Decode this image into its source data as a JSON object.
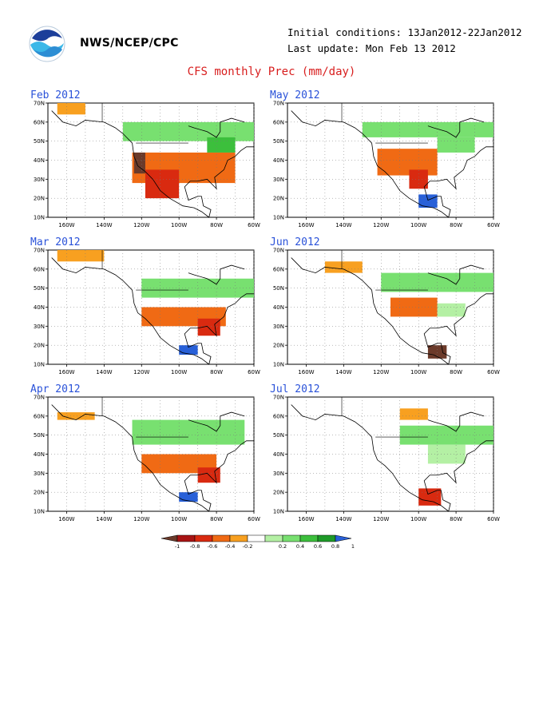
{
  "header": {
    "agency": "NWS/NCEP/CPC",
    "initial_conditions": "Initial conditions: 13Jan2012-22Jan2012",
    "last_update": "Last update: Mon Feb 13 2012",
    "logo_icon": "noaa-logo-icon"
  },
  "title": "CFS monthly Prec (mm/day)",
  "chart_data": [
    {
      "type": "heatmap",
      "panel_title": "Feb 2012",
      "x_ticks": [
        "160W",
        "140W",
        "120W",
        "100W",
        "80W",
        "60W"
      ],
      "y_ticks": [
        "10N",
        "20N",
        "30N",
        "40N",
        "50N",
        "60N",
        "70N"
      ],
      "xlim": [
        -170,
        -60
      ],
      "ylim": [
        10,
        70
      ],
      "grid": true,
      "regions": [
        {
          "lon": [
            -125,
            -70
          ],
          "lat": [
            28,
            44
          ],
          "value": -0.5
        },
        {
          "lon": [
            -124,
            -118
          ],
          "lat": [
            33,
            44
          ],
          "value": -1.0
        },
        {
          "lon": [
            -118,
            -100
          ],
          "lat": [
            20,
            35
          ],
          "value": -0.8
        },
        {
          "lon": [
            -130,
            -60
          ],
          "lat": [
            50,
            60
          ],
          "value": 0.5
        },
        {
          "lon": [
            -165,
            -150
          ],
          "lat": [
            64,
            70
          ],
          "value": -0.3
        },
        {
          "lon": [
            -85,
            -70
          ],
          "lat": [
            44,
            52
          ],
          "value": 0.6
        }
      ]
    },
    {
      "type": "heatmap",
      "panel_title": "May 2012",
      "x_ticks": [
        "160W",
        "140W",
        "120W",
        "100W",
        "80W",
        "60W"
      ],
      "y_ticks": [
        "10N",
        "20N",
        "30N",
        "40N",
        "50N",
        "60N",
        "70N"
      ],
      "xlim": [
        -170,
        -60
      ],
      "ylim": [
        10,
        70
      ],
      "grid": true,
      "regions": [
        {
          "lon": [
            -122,
            -90
          ],
          "lat": [
            32,
            46
          ],
          "value": -0.6
        },
        {
          "lon": [
            -105,
            -95
          ],
          "lat": [
            25,
            35
          ],
          "value": -0.8
        },
        {
          "lon": [
            -100,
            -90
          ],
          "lat": [
            15,
            22
          ],
          "value": 1.0
        },
        {
          "lon": [
            -130,
            -60
          ],
          "lat": [
            52,
            60
          ],
          "value": 0.4
        },
        {
          "lon": [
            -90,
            -70
          ],
          "lat": [
            44,
            52
          ],
          "value": 0.5
        }
      ]
    },
    {
      "type": "heatmap",
      "panel_title": "Mar 2012",
      "x_ticks": [
        "160W",
        "140W",
        "120W",
        "100W",
        "80W",
        "60W"
      ],
      "y_ticks": [
        "10N",
        "20N",
        "30N",
        "40N",
        "50N",
        "60N",
        "70N"
      ],
      "xlim": [
        -170,
        -60
      ],
      "ylim": [
        10,
        70
      ],
      "grid": true,
      "regions": [
        {
          "lon": [
            -120,
            -75
          ],
          "lat": [
            30,
            40
          ],
          "value": -0.6
        },
        {
          "lon": [
            -90,
            -78
          ],
          "lat": [
            25,
            34
          ],
          "value": -0.8
        },
        {
          "lon": [
            -165,
            -140
          ],
          "lat": [
            64,
            70
          ],
          "value": -0.3
        },
        {
          "lon": [
            -120,
            -60
          ],
          "lat": [
            45,
            55
          ],
          "value": 0.4
        },
        {
          "lon": [
            -100,
            -90
          ],
          "lat": [
            15,
            20
          ],
          "value": 1.0
        }
      ]
    },
    {
      "type": "heatmap",
      "panel_title": "Jun 2012",
      "x_ticks": [
        "160W",
        "140W",
        "120W",
        "100W",
        "80W",
        "60W"
      ],
      "y_ticks": [
        "10N",
        "20N",
        "30N",
        "40N",
        "50N",
        "60N",
        "70N"
      ],
      "xlim": [
        -170,
        -60
      ],
      "ylim": [
        10,
        70
      ],
      "grid": true,
      "regions": [
        {
          "lon": [
            -115,
            -90
          ],
          "lat": [
            35,
            45
          ],
          "value": -0.6
        },
        {
          "lon": [
            -150,
            -130
          ],
          "lat": [
            58,
            64
          ],
          "value": -0.3
        },
        {
          "lon": [
            -95,
            -85
          ],
          "lat": [
            13,
            20
          ],
          "value": -1.0
        },
        {
          "lon": [
            -120,
            -60
          ],
          "lat": [
            48,
            58
          ],
          "value": 0.4
        },
        {
          "lon": [
            -90,
            -75
          ],
          "lat": [
            35,
            42
          ],
          "value": 0.3
        }
      ]
    },
    {
      "type": "heatmap",
      "panel_title": "Apr 2012",
      "x_ticks": [
        "160W",
        "140W",
        "120W",
        "100W",
        "80W",
        "60W"
      ],
      "y_ticks": [
        "10N",
        "20N",
        "30N",
        "40N",
        "50N",
        "60N",
        "70N"
      ],
      "xlim": [
        -170,
        -60
      ],
      "ylim": [
        10,
        70
      ],
      "grid": true,
      "regions": [
        {
          "lon": [
            -120,
            -80
          ],
          "lat": [
            30,
            40
          ],
          "value": -0.5
        },
        {
          "lon": [
            -90,
            -78
          ],
          "lat": [
            25,
            33
          ],
          "value": -0.8
        },
        {
          "lon": [
            -125,
            -65
          ],
          "lat": [
            45,
            58
          ],
          "value": 0.4
        },
        {
          "lon": [
            -165,
            -145
          ],
          "lat": [
            58,
            62
          ],
          "value": -0.3
        },
        {
          "lon": [
            -100,
            -90
          ],
          "lat": [
            15,
            20
          ],
          "value": 1.0
        }
      ]
    },
    {
      "type": "heatmap",
      "panel_title": "Jul 2012",
      "x_ticks": [
        "160W",
        "140W",
        "120W",
        "100W",
        "80W",
        "60W"
      ],
      "y_ticks": [
        "10N",
        "20N",
        "30N",
        "40N",
        "50N",
        "60N",
        "70N"
      ],
      "xlim": [
        -170,
        -60
      ],
      "ylim": [
        10,
        70
      ],
      "grid": true,
      "regions": [
        {
          "lon": [
            -110,
            -95
          ],
          "lat": [
            58,
            64
          ],
          "value": -0.3
        },
        {
          "lon": [
            -110,
            -60
          ],
          "lat": [
            45,
            55
          ],
          "value": 0.4
        },
        {
          "lon": [
            -100,
            -88
          ],
          "lat": [
            13,
            22
          ],
          "value": -0.8
        },
        {
          "lon": [
            -95,
            -75
          ],
          "lat": [
            35,
            45
          ],
          "value": 0.3
        }
      ]
    }
  ],
  "colorbar": {
    "labels": [
      "-1",
      "-0.8",
      "-0.6",
      "-0.4",
      "-0.2",
      "0.2",
      "0.4",
      "0.6",
      "0.8",
      "1"
    ],
    "colors": [
      "#6b3a2a",
      "#a81414",
      "#d92a10",
      "#f06a14",
      "#f8a020",
      "#ffffff",
      "#b4f0a4",
      "#78e070",
      "#3cbf3c",
      "#1e9a28",
      "#2860d8"
    ]
  },
  "colors": {
    "title": "#d81d1d",
    "panel_title": "#2a52d9"
  }
}
